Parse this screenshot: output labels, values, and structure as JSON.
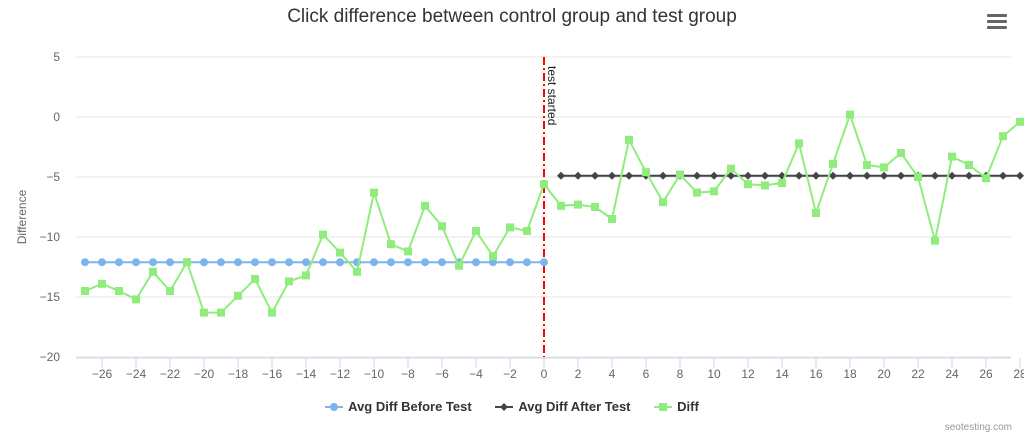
{
  "title": "Click difference between control group and test group",
  "credit": "seotesting.com",
  "colors": {
    "before": "#7cb5ec",
    "after": "#434348",
    "diff": "#90ed7d",
    "plotline": "#ff0000",
    "grid": "#e6e6e6"
  },
  "chart_data": {
    "type": "line",
    "title": "Click difference between control group and test group",
    "xlabel": "",
    "ylabel": "Difference",
    "xlim": [
      -27,
      28
    ],
    "ylim": [
      -20,
      5
    ],
    "x_ticks": [
      -26,
      -24,
      -22,
      -20,
      -18,
      -16,
      -14,
      -12,
      -10,
      -8,
      -6,
      -4,
      -2,
      0,
      2,
      4,
      6,
      8,
      10,
      12,
      14,
      16,
      18,
      20,
      22,
      24,
      26,
      28
    ],
    "y_ticks": [
      5,
      0,
      -5,
      -10,
      -15,
      -20
    ],
    "grid": true,
    "legend": "bottom-center",
    "plot_line": {
      "x": 0,
      "label": "test started"
    },
    "series": [
      {
        "name": "Avg Diff Before Test",
        "marker": "circle",
        "x": [
          -27,
          -26,
          -25,
          -24,
          -23,
          -22,
          -21,
          -20,
          -19,
          -18,
          -17,
          -16,
          -15,
          -14,
          -13,
          -12,
          -11,
          -10,
          -9,
          -8,
          -7,
          -6,
          -5,
          -4,
          -3,
          -2,
          -1,
          0
        ],
        "y": [
          -12.1,
          -12.1,
          -12.1,
          -12.1,
          -12.1,
          -12.1,
          -12.1,
          -12.1,
          -12.1,
          -12.1,
          -12.1,
          -12.1,
          -12.1,
          -12.1,
          -12.1,
          -12.1,
          -12.1,
          -12.1,
          -12.1,
          -12.1,
          -12.1,
          -12.1,
          -12.1,
          -12.1,
          -12.1,
          -12.1,
          -12.1,
          -12.1
        ]
      },
      {
        "name": "Avg Diff After Test",
        "marker": "diamond",
        "x": [
          1,
          2,
          3,
          4,
          5,
          6,
          7,
          8,
          9,
          10,
          11,
          12,
          13,
          14,
          15,
          16,
          17,
          18,
          19,
          20,
          21,
          22,
          23,
          24,
          25,
          26,
          27,
          28
        ],
        "y": [
          -4.9,
          -4.9,
          -4.9,
          -4.9,
          -4.9,
          -4.9,
          -4.9,
          -4.9,
          -4.9,
          -4.9,
          -4.9,
          -4.9,
          -4.9,
          -4.9,
          -4.9,
          -4.9,
          -4.9,
          -4.9,
          -4.9,
          -4.9,
          -4.9,
          -4.9,
          -4.9,
          -4.9,
          -4.9,
          -4.9,
          -4.9,
          -4.9
        ]
      },
      {
        "name": "Diff",
        "marker": "square",
        "x": [
          -27,
          -26,
          -25,
          -24,
          -23,
          -22,
          -21,
          -20,
          -19,
          -18,
          -17,
          -16,
          -15,
          -14,
          -13,
          -12,
          -11,
          -10,
          -9,
          -8,
          -7,
          -6,
          -5,
          -4,
          -3,
          -2,
          -1,
          0,
          1,
          2,
          3,
          4,
          5,
          6,
          7,
          8,
          9,
          10,
          11,
          12,
          13,
          14,
          15,
          16,
          17,
          18,
          19,
          20,
          21,
          22,
          23,
          24,
          25,
          26,
          27,
          28
        ],
        "y": [
          -14.5,
          -13.9,
          -14.5,
          -15.2,
          -12.9,
          -14.5,
          -12.1,
          -16.3,
          -16.3,
          -14.9,
          -13.5,
          -16.3,
          -13.7,
          -13.2,
          -9.8,
          -11.3,
          -12.9,
          -6.3,
          -10.6,
          -11.2,
          -7.4,
          -9.1,
          -12.4,
          -9.5,
          -11.6,
          -9.2,
          -9.5,
          -5.6,
          -7.4,
          -7.3,
          -7.5,
          -8.5,
          -1.9,
          -4.6,
          -7.1,
          -4.8,
          -6.3,
          -6.2,
          -4.3,
          -5.6,
          -5.7,
          -5.5,
          -2.2,
          -8.0,
          -3.9,
          0.2,
          -4.0,
          -4.2,
          -3.0,
          -5.0,
          -10.3,
          -3.3,
          -4.0,
          -5.1,
          -1.6,
          -0.4
        ]
      }
    ]
  }
}
